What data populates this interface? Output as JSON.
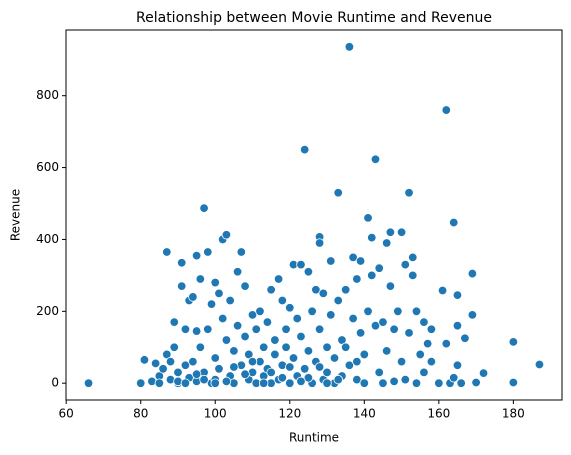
{
  "chart_data": {
    "type": "scatter",
    "title": "Relationship between Movie Runtime and Revenue",
    "x_label": "Runtime",
    "y_label": "Revenue",
    "color": "#1f77b4",
    "xlim": [
      59.95,
      193.05
    ],
    "ylim": [
      -46.8,
      982.8
    ],
    "xticks": [
      60,
      80,
      100,
      120,
      140,
      160,
      180
    ],
    "yticks": [
      0,
      200,
      400,
      600,
      800
    ],
    "x": [
      66,
      80,
      81,
      83,
      84,
      85,
      85,
      86,
      87,
      87,
      88,
      88,
      89,
      89,
      90,
      90,
      91,
      91,
      92,
      92,
      93,
      93,
      94,
      94,
      95,
      95,
      95,
      96,
      96,
      97,
      97,
      98,
      98,
      99,
      99,
      100,
      100,
      100,
      101,
      101,
      102,
      102,
      103,
      103,
      104,
      104,
      105,
      105,
      106,
      106,
      107,
      107,
      108,
      108,
      109,
      109,
      110,
      110,
      111,
      111,
      112,
      112,
      113,
      113,
      114,
      114,
      115,
      115,
      116,
      116,
      117,
      117,
      118,
      118,
      119,
      119,
      120,
      120,
      121,
      121,
      122,
      122,
      123,
      123,
      124,
      124,
      125,
      125,
      126,
      126,
      127,
      127,
      128,
      128,
      128,
      129,
      129,
      130,
      130,
      131,
      131,
      132,
      132,
      133,
      133,
      134,
      134,
      135,
      135,
      136,
      136,
      137,
      137,
      138,
      138,
      139,
      139,
      140,
      140,
      141,
      141,
      142,
      142,
      143,
      143,
      144,
      144,
      145,
      145,
      146,
      146,
      147,
      147,
      148,
      148,
      149,
      150,
      150,
      151,
      151,
      152,
      152,
      153,
      153,
      154,
      154,
      155,
      156,
      156,
      157,
      158,
      158,
      160,
      161,
      162,
      162,
      163,
      164,
      164,
      165,
      165,
      165,
      166,
      167,
      169,
      169,
      170,
      172,
      180,
      180,
      187,
      90,
      95,
      100,
      105,
      110,
      115,
      120,
      125,
      130,
      92,
      97,
      103,
      108,
      113,
      118,
      123,
      128,
      133,
      138
    ],
    "values": [
      0,
      0,
      65,
      5,
      55,
      20,
      0,
      40,
      365,
      80,
      10,
      60,
      100,
      170,
      30,
      0,
      270,
      335,
      150,
      50,
      230,
      15,
      240,
      60,
      355,
      145,
      5,
      290,
      100,
      487,
      30,
      365,
      150,
      0,
      220,
      280,
      70,
      10,
      250,
      40,
      400,
      180,
      413,
      120,
      20,
      230,
      90,
      0,
      310,
      160,
      365,
      50,
      270,
      130,
      80,
      10,
      190,
      30,
      150,
      0,
      200,
      60,
      100,
      20,
      170,
      40,
      260,
      0,
      120,
      80,
      290,
      10,
      230,
      50,
      150,
      100,
      210,
      0,
      330,
      70,
      180,
      20,
      330,
      130,
      650,
      40,
      310,
      90,
      0,
      200,
      260,
      60,
      407,
      390,
      150,
      10,
      250,
      100,
      30,
      340,
      190,
      70,
      0,
      530,
      230,
      120,
      20,
      100,
      260,
      936,
      50,
      350,
      180,
      10,
      290,
      140,
      340,
      80,
      0,
      460,
      200,
      405,
      300,
      623,
      160,
      30,
      320,
      170,
      0,
      390,
      90,
      420,
      270,
      150,
      5,
      200,
      420,
      60,
      330,
      10,
      530,
      140,
      350,
      300,
      200,
      0,
      80,
      170,
      30,
      110,
      150,
      60,
      0,
      258,
      760,
      110,
      0,
      447,
      15,
      245,
      160,
      50,
      0,
      125,
      305,
      190,
      2,
      28,
      115,
      2,
      52,
      5,
      25,
      0,
      45,
      60,
      30,
      45,
      15,
      0,
      0,
      10,
      5,
      25,
      0,
      15,
      5,
      45,
      10,
      60
    ]
  }
}
